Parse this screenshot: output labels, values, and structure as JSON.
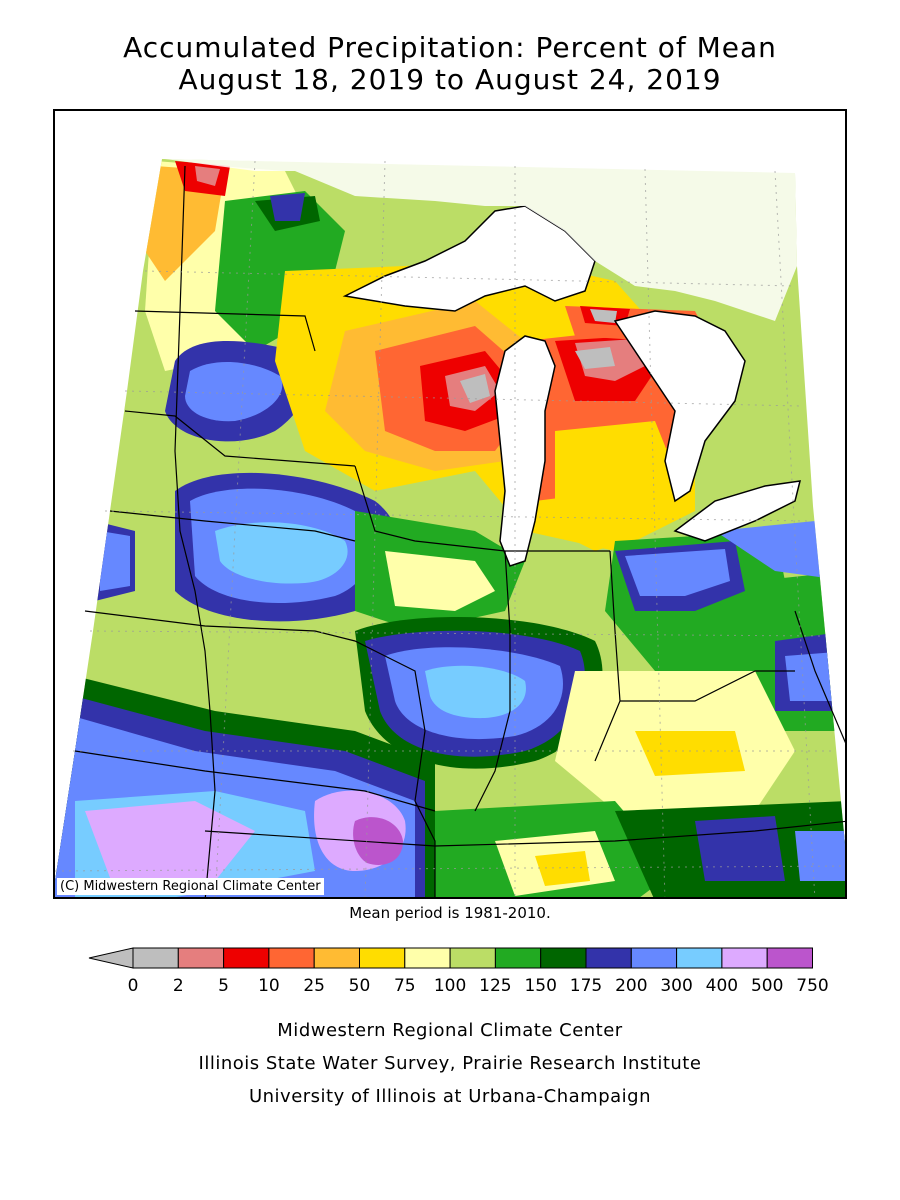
{
  "title": {
    "line1": "Accumulated Precipitation: Percent of Mean",
    "line2": "August 18, 2019 to August 24, 2019"
  },
  "copyright": "(C) Midwestern Regional Climate Center",
  "mean_note": "Mean period is 1981-2010.",
  "legend": {
    "labels": [
      "0",
      "2",
      "5",
      "10",
      "25",
      "50",
      "75",
      "100",
      "125",
      "150",
      "175",
      "200",
      "300",
      "400",
      "500",
      "750"
    ],
    "colors": [
      "#bebebe",
      "#e57e7e",
      "#ee0000",
      "#ff6633",
      "#ffbb33",
      "#ffdd00",
      "#ffffaa",
      "#bbdd66",
      "#22aa22",
      "#006600",
      "#3333aa",
      "#6688ff",
      "#77ccff",
      "#ddaaff",
      "#bb55cc"
    ],
    "below_min_color": "#bebebe"
  },
  "credits": {
    "line1": "Midwestern Regional Climate Center",
    "line2": "Illinois State Water Survey, Prairie Research Institute",
    "line3": "University of Illinois at Urbana-Champaign"
  }
}
